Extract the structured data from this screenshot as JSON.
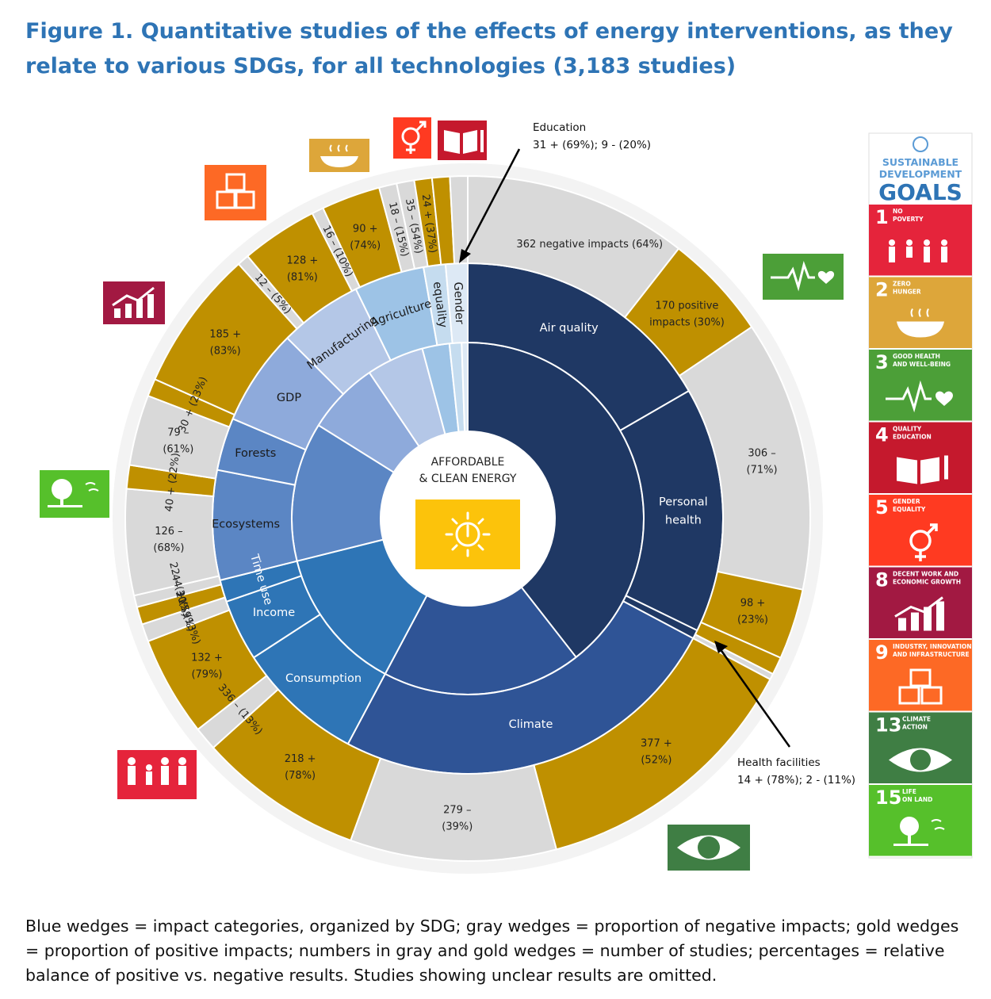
{
  "title": "Figure 1. Quantitative studies of the effects of energy interventions, as they relate to various SDGs, for all technologies (3,183 studies)",
  "center": {
    "line1": "AFFORDABLE",
    "line2": "& CLEAN ENERGY"
  },
  "inner_groups": [
    {
      "sdg": 3,
      "start": 0,
      "end": 142,
      "color": "#1f3864"
    },
    {
      "sdg": 13,
      "start": 142,
      "end": 208,
      "color": "#2f5496"
    },
    {
      "sdg": 1,
      "start": 208,
      "end": 256,
      "color": "#2e75b6"
    },
    {
      "sdg": 15,
      "start": 256,
      "end": 302,
      "color": "#5b86c4"
    },
    {
      "sdg": 8,
      "start": 302,
      "end": 326,
      "color": "#8eaadb"
    },
    {
      "sdg": 9,
      "start": 326,
      "end": 345,
      "color": "#b4c7e7"
    },
    {
      "sdg": 2,
      "start": 345,
      "end": 354,
      "color": "#9dc3e6"
    },
    {
      "sdg": 4,
      "start": 354,
      "end": 358,
      "color": "#c5dcef"
    },
    {
      "sdg": 5,
      "start": 358,
      "end": 360,
      "color": "#dde9f5"
    }
  ],
  "categories": [
    {
      "label": "Air quality",
      "start": 0,
      "end": 60,
      "color": "#1f3864",
      "text_color": "#ffffff"
    },
    {
      "label": "Personal",
      "label2": "health",
      "start": 60,
      "end": 116,
      "color": "#1f3864",
      "text_color": "#ffffff"
    },
    {
      "label": "Health facilities",
      "start": 116,
      "end": 118,
      "color": "#1f3864",
      "text_color": "#ffffff"
    },
    {
      "label": "Climate",
      "start": 118,
      "end": 208,
      "color": "#2f5496",
      "text_color": "#ffffff"
    },
    {
      "label": "Consumption",
      "start": 208,
      "end": 237,
      "color": "#2e75b6",
      "text_color": "#ffffff"
    },
    {
      "label": "Income",
      "start": 237,
      "end": 251,
      "color": "#2e75b6",
      "text_color": "#ffffff"
    },
    {
      "label": "Time use",
      "start": 251,
      "end": 256,
      "color": "#2e75b6",
      "text_color": "#ffffff"
    },
    {
      "label": "Ecosystems",
      "start": 256,
      "end": 281,
      "color": "#5b86c4",
      "text_color": "#1a1a1a"
    },
    {
      "label": "Forests",
      "start": 281,
      "end": 293,
      "color": "#5b86c4",
      "text_color": "#1a1a1a"
    },
    {
      "label": "GDP",
      "start": 293,
      "end": 315,
      "color": "#8eaadb",
      "text_color": "#1a1a1a"
    },
    {
      "label": "Manufacturing",
      "start": 315,
      "end": 334,
      "color": "#b4c7e7",
      "text_color": "#1a1a1a"
    },
    {
      "label": "Agriculture",
      "start": 334,
      "end": 350,
      "color": "#9dc3e6",
      "text_color": "#1a1a1a"
    },
    {
      "label": "equality",
      "start": 350,
      "end": 355,
      "color": "#c5dcef",
      "text_color": "#1a1a1a"
    },
    {
      "label": "Gender",
      "start": 355,
      "end": 360,
      "color": "#dde9f5",
      "text_color": "#1a1a1a"
    }
  ],
  "outer": [
    {
      "label": "362 negative impacts (64%)",
      "start": 0,
      "end": 38,
      "kind": "neg"
    },
    {
      "label": "170 positive",
      "label2": "impacts (30%)",
      "start": 38,
      "end": 56,
      "kind": "pos"
    },
    {
      "label": "306 –",
      "label2": "(71%)",
      "start": 56,
      "end": 102,
      "kind": "neg"
    },
    {
      "label": "98 +",
      "label2": "(23%)",
      "start": 102,
      "end": 114,
      "kind": "pos"
    },
    {
      "label": "",
      "start": 114,
      "end": 117,
      "kind": "pos"
    },
    {
      "label": "",
      "start": 117,
      "end": 118,
      "kind": "neg"
    },
    {
      "label": "377 +",
      "label2": "(52%)",
      "start": 118,
      "end": 165,
      "kind": "pos"
    },
    {
      "label": "279 –",
      "label2": "(39%)",
      "start": 165,
      "end": 200,
      "kind": "neg"
    },
    {
      "label": "218 +",
      "label2": "(78%)",
      "start": 200,
      "end": 228,
      "kind": "pos"
    },
    {
      "label": "336 – (13%)",
      "start": 228,
      "end": 232,
      "kind": "neg"
    },
    {
      "label": "132 +",
      "label2": "(79%)",
      "start": 232,
      "end": 249,
      "kind": "pos"
    },
    {
      "label": "21 – (13%)",
      "start": 249,
      "end": 252,
      "kind": "neg"
    },
    {
      "label": "44 + (59%)",
      "start": 252,
      "end": 255,
      "kind": "pos"
    },
    {
      "label": "22 – (30%)",
      "start": 255,
      "end": 257,
      "kind": "neg"
    },
    {
      "label": "126 –",
      "label2": "(68%)",
      "start": 257,
      "end": 275,
      "kind": "neg"
    },
    {
      "label": "40 + (22%)",
      "start": 275,
      "end": 279,
      "kind": "pos"
    },
    {
      "label": "79 –",
      "label2": "(61%)",
      "start": 279,
      "end": 291,
      "kind": "neg"
    },
    {
      "label": "30 + (23%)",
      "start": 291,
      "end": 294,
      "kind": "pos"
    },
    {
      "label": "185 +",
      "label2": "(83%)",
      "start": 294,
      "end": 318,
      "kind": "pos"
    },
    {
      "label": "12 – (5%)",
      "start": 318,
      "end": 320,
      "kind": "neg"
    },
    {
      "label": "128 +",
      "label2": "(81%)",
      "start": 320,
      "end": 333,
      "kind": "pos"
    },
    {
      "label": "16 – (10%)",
      "start": 333,
      "end": 335,
      "kind": "neg"
    },
    {
      "label": "90 +",
      "label2": "(74%)",
      "start": 335,
      "end": 345,
      "kind": "pos"
    },
    {
      "label": "18 – (15%)",
      "start": 345,
      "end": 348,
      "kind": "neg"
    },
    {
      "label": "35 – (54%)",
      "start": 348,
      "end": 351,
      "kind": "neg"
    },
    {
      "label": "24 + (37%)",
      "start": 351,
      "end": 354,
      "kind": "pos"
    },
    {
      "label": "",
      "start": 354,
      "end": 357,
      "kind": "pos"
    },
    {
      "label": "",
      "start": 357,
      "end": 360,
      "kind": "neg"
    }
  ],
  "colors": {
    "negative": "#d9d9d9",
    "positive": "#bf9000",
    "sdg_bg": "#f3f3f3"
  },
  "callouts": {
    "education": {
      "line1": "Education",
      "line2": "31 + (69%); 9 - (20%)"
    },
    "health_facilities": {
      "line1": "Health facilities",
      "line2": "14 + (78%); 2 - (11%)"
    }
  },
  "sdg_panel": {
    "header": [
      "SUSTAINABLE",
      "DEVELOPMENT"
    ],
    "goals_word": "GOALS",
    "goals": [
      {
        "number": "1",
        "name": [
          "NO",
          "POVERTY"
        ],
        "color": "#e5243b",
        "icon": "family-icon"
      },
      {
        "number": "2",
        "name": [
          "ZERO",
          "HUNGER"
        ],
        "color": "#dda63a",
        "icon": "bowl-icon"
      },
      {
        "number": "3",
        "name": [
          "GOOD HEALTH",
          "AND WELL-BEING"
        ],
        "color": "#4c9f38",
        "icon": "heartbeat-icon"
      },
      {
        "number": "4",
        "name": [
          "QUALITY",
          "EDUCATION"
        ],
        "color": "#c5192d",
        "icon": "book-icon"
      },
      {
        "number": "5",
        "name": [
          "GENDER",
          "EQUALITY"
        ],
        "color": "#ff3a21",
        "icon": "gender-icon"
      },
      {
        "number": "8",
        "name": [
          "DECENT WORK AND",
          "ECONOMIC GROWTH"
        ],
        "color": "#a21942",
        "icon": "growth-chart-icon"
      },
      {
        "number": "9",
        "name": [
          "INDUSTRY, INNOVATION",
          "AND INFRASTRUCTURE"
        ],
        "color": "#fd6925",
        "icon": "cubes-icon"
      },
      {
        "number": "13",
        "name": [
          "CLIMATE",
          "ACTION"
        ],
        "color": "#3f7e44",
        "icon": "eye-globe-icon"
      },
      {
        "number": "15",
        "name": [
          "LIFE",
          "ON LAND"
        ],
        "color": "#56c02b",
        "icon": "tree-icon"
      }
    ]
  },
  "caption": "Blue wedges = impact categories, organized by SDG; gray wedges = proportion of negative impacts; gold wedges = proportion of positive impacts; numbers in gray and gold wedges = number of studies; percentages = relative balance of positive vs. negative results. Studies showing unclear results are omitted."
}
